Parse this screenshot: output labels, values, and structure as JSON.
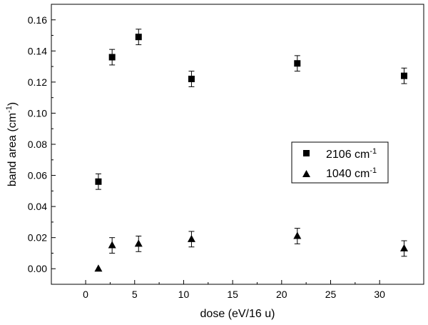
{
  "chart_data": {
    "type": "scatter",
    "xlabel": "dose (eV/16 u)",
    "ylabel_main": "band area (cm",
    "ylabel_sup": "-1",
    "ylabel_tail": ")",
    "xlim": [
      -3.5,
      34.5
    ],
    "ylim": [
      -0.01,
      0.17
    ],
    "x_ticks": [
      0,
      5,
      10,
      15,
      20,
      25,
      30
    ],
    "x_tick_labels": [
      "0",
      "5",
      "10",
      "15",
      "20",
      "25",
      "30"
    ],
    "y_ticks": [
      0.0,
      0.02,
      0.04,
      0.06,
      0.08,
      0.1,
      0.12,
      0.14,
      0.16
    ],
    "y_tick_labels": [
      "0.00",
      "0.02",
      "0.04",
      "0.06",
      "0.08",
      "0.10",
      "0.12",
      "0.14",
      "0.16"
    ],
    "grid": false,
    "legend_position": "center-right",
    "series": [
      {
        "name_main": "2106 cm",
        "name_sup": "-1",
        "marker": "square",
        "x": [
          1.3,
          2.7,
          5.4,
          10.8,
          21.6,
          32.5
        ],
        "y": [
          0.056,
          0.136,
          0.149,
          0.122,
          0.132,
          0.124
        ],
        "err": [
          0.005,
          0.005,
          0.005,
          0.005,
          0.005,
          0.005
        ]
      },
      {
        "name_main": "1040 cm",
        "name_sup": "-1",
        "marker": "triangle",
        "x": [
          1.3,
          2.7,
          5.4,
          10.8,
          21.6,
          32.5
        ],
        "y": [
          0.0,
          0.015,
          0.016,
          0.019,
          0.021,
          0.013
        ],
        "err": [
          0,
          0.005,
          0.005,
          0.005,
          0.005,
          0.005
        ]
      }
    ]
  }
}
